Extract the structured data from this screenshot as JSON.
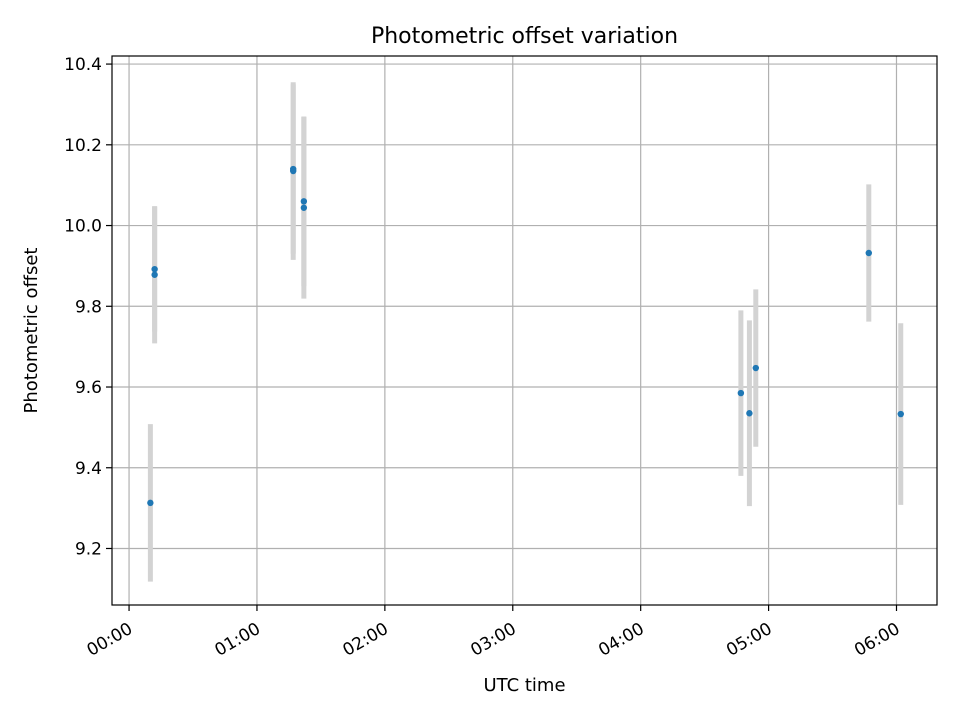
{
  "chart_data": {
    "type": "scatter",
    "title": "Photometric offset variation",
    "xlabel": "UTC time",
    "ylabel": "Photometric offset",
    "x_ticks": [
      "00:00",
      "01:00",
      "02:00",
      "03:00",
      "04:00",
      "05:00",
      "06:00"
    ],
    "y_ticks": [
      "9.2",
      "9.4",
      "9.6",
      "9.8",
      "10.0",
      "10.2",
      "10.4"
    ],
    "xlim": [
      "23:52",
      "06:19"
    ],
    "ylim": [
      9.06,
      10.42
    ],
    "grid": true,
    "legend": "none",
    "point_color": "#1f77b4",
    "errorbar_color": "#d3d3d3",
    "points": [
      {
        "x": "00:10",
        "y": 9.313,
        "err": 0.195
      },
      {
        "x": "00:12",
        "y": 9.878,
        "err": 0.17
      },
      {
        "x": "00:12",
        "y": 9.892,
        "err": 0.155
      },
      {
        "x": "01:17",
        "y": 10.135,
        "err": 0.22
      },
      {
        "x": "01:17",
        "y": 10.14,
        "err": 0.21
      },
      {
        "x": "01:22",
        "y": 10.044,
        "err": 0.225
      },
      {
        "x": "01:22",
        "y": 10.06,
        "err": 0.21
      },
      {
        "x": "04:47",
        "y": 9.585,
        "err": 0.205
      },
      {
        "x": "04:51",
        "y": 9.535,
        "err": 0.23
      },
      {
        "x": "04:54",
        "y": 9.647,
        "err": 0.195
      },
      {
        "x": "05:47",
        "y": 9.932,
        "err": 0.17
      },
      {
        "x": "06:02",
        "y": 9.533,
        "err": 0.225
      }
    ]
  }
}
